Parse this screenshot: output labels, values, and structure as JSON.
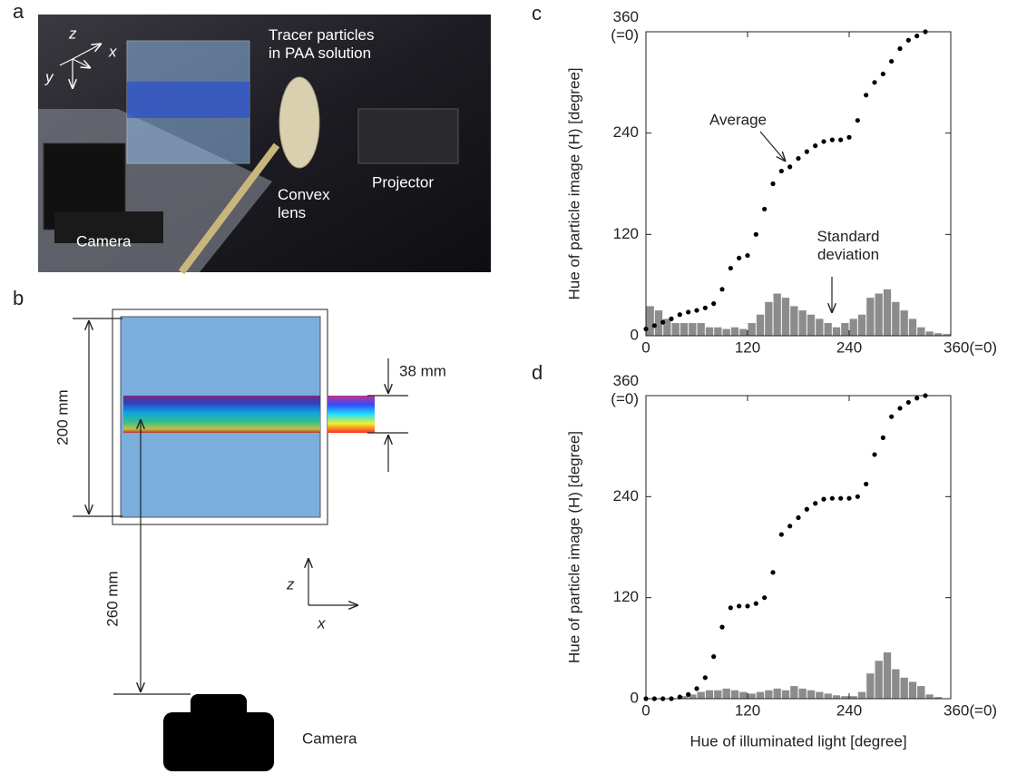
{
  "panel_letters": [
    "a",
    "b",
    "c",
    "d"
  ],
  "photo": {
    "axes": [
      "z",
      "x",
      "y"
    ],
    "labels": [
      "Tracer particles\nin PAA solution",
      "Convex\nlens",
      "Projector",
      "Camera"
    ]
  },
  "diagram": {
    "dimensions": [
      "200 mm",
      "38 mm",
      "260 mm"
    ],
    "axes": [
      "z",
      "x"
    ],
    "camera": "Camera"
  },
  "chart_data": [
    {
      "type": "scatter",
      "ylabel": "Hue of particle image (H) [degree]",
      "x": [
        0,
        10,
        20,
        30,
        40,
        50,
        60,
        70,
        80,
        90,
        100,
        110,
        120,
        130,
        140,
        150,
        160,
        170,
        180,
        190,
        200,
        210,
        220,
        230,
        240,
        250,
        260,
        270,
        280,
        290,
        300,
        310,
        320,
        330
      ],
      "series": [
        {
          "name": "Average",
          "color": "#000000",
          "values": [
            8,
            12,
            16,
            20,
            25,
            28,
            30,
            33,
            38,
            55,
            80,
            92,
            95,
            120,
            150,
            180,
            195,
            200,
            210,
            218,
            225,
            230,
            232,
            232,
            235,
            255,
            285,
            300,
            310,
            325,
            340,
            350,
            355,
            360
          ]
        }
      ],
      "histogram": {
        "name": "Standard\ndeviation",
        "color": "#8c8c8c",
        "bins": [
          0,
          10,
          20,
          30,
          40,
          50,
          60,
          70,
          80,
          90,
          100,
          110,
          120,
          130,
          140,
          150,
          160,
          170,
          180,
          190,
          200,
          210,
          220,
          230,
          240,
          250,
          260,
          270,
          280,
          290,
          300,
          310,
          320,
          330,
          340,
          350,
          360
        ],
        "counts": [
          35,
          30,
          20,
          15,
          15,
          15,
          15,
          10,
          10,
          8,
          10,
          8,
          15,
          25,
          40,
          50,
          45,
          35,
          30,
          25,
          20,
          15,
          10,
          15,
          20,
          25,
          45,
          50,
          55,
          40,
          30,
          20,
          10,
          5,
          3,
          2
        ]
      },
      "xlim": [
        0,
        360
      ],
      "ylim": [
        0,
        360
      ],
      "xticks": [
        0,
        120,
        240,
        {
          "value": 360,
          "label": "360(=0)"
        }
      ],
      "yticks": [
        0,
        120,
        240,
        {
          "value": 360,
          "label": "360\n(=0)"
        }
      ]
    },
    {
      "type": "scatter",
      "ylabel": "Hue of particle image (H) [degree]",
      "xlabel": "Hue of illuminated light [degree]",
      "x": [
        0,
        10,
        20,
        30,
        40,
        50,
        60,
        70,
        80,
        90,
        100,
        110,
        120,
        130,
        140,
        150,
        160,
        170,
        180,
        190,
        200,
        210,
        220,
        230,
        240,
        250,
        260,
        270,
        280,
        290,
        300,
        310,
        320,
        330
      ],
      "series": [
        {
          "color": "#000000",
          "values": [
            0,
            0,
            0,
            0,
            2,
            5,
            12,
            25,
            50,
            85,
            108,
            110,
            110,
            113,
            120,
            150,
            195,
            205,
            215,
            225,
            232,
            237,
            238,
            238,
            238,
            240,
            255,
            290,
            310,
            335,
            345,
            352,
            357,
            360
          ]
        }
      ],
      "histogram": {
        "color": "#8c8c8c",
        "bins": [
          0,
          10,
          20,
          30,
          40,
          50,
          60,
          70,
          80,
          90,
          100,
          110,
          120,
          130,
          140,
          150,
          160,
          170,
          180,
          190,
          200,
          210,
          220,
          230,
          240,
          250,
          260,
          270,
          280,
          290,
          300,
          310,
          320,
          330,
          340,
          350,
          360
        ],
        "counts": [
          0,
          0,
          0,
          0,
          3,
          5,
          8,
          10,
          10,
          12,
          10,
          8,
          6,
          8,
          10,
          12,
          10,
          15,
          12,
          10,
          8,
          6,
          4,
          3,
          3,
          8,
          30,
          45,
          55,
          35,
          25,
          20,
          15,
          5,
          2,
          0
        ]
      },
      "xlim": [
        0,
        360
      ],
      "ylim": [
        0,
        360
      ],
      "xticks": [
        0,
        120,
        240,
        {
          "value": 360,
          "label": "360(=0)"
        }
      ],
      "yticks": [
        0,
        120,
        240,
        {
          "value": 360,
          "label": "360\n(=0)"
        }
      ]
    }
  ]
}
